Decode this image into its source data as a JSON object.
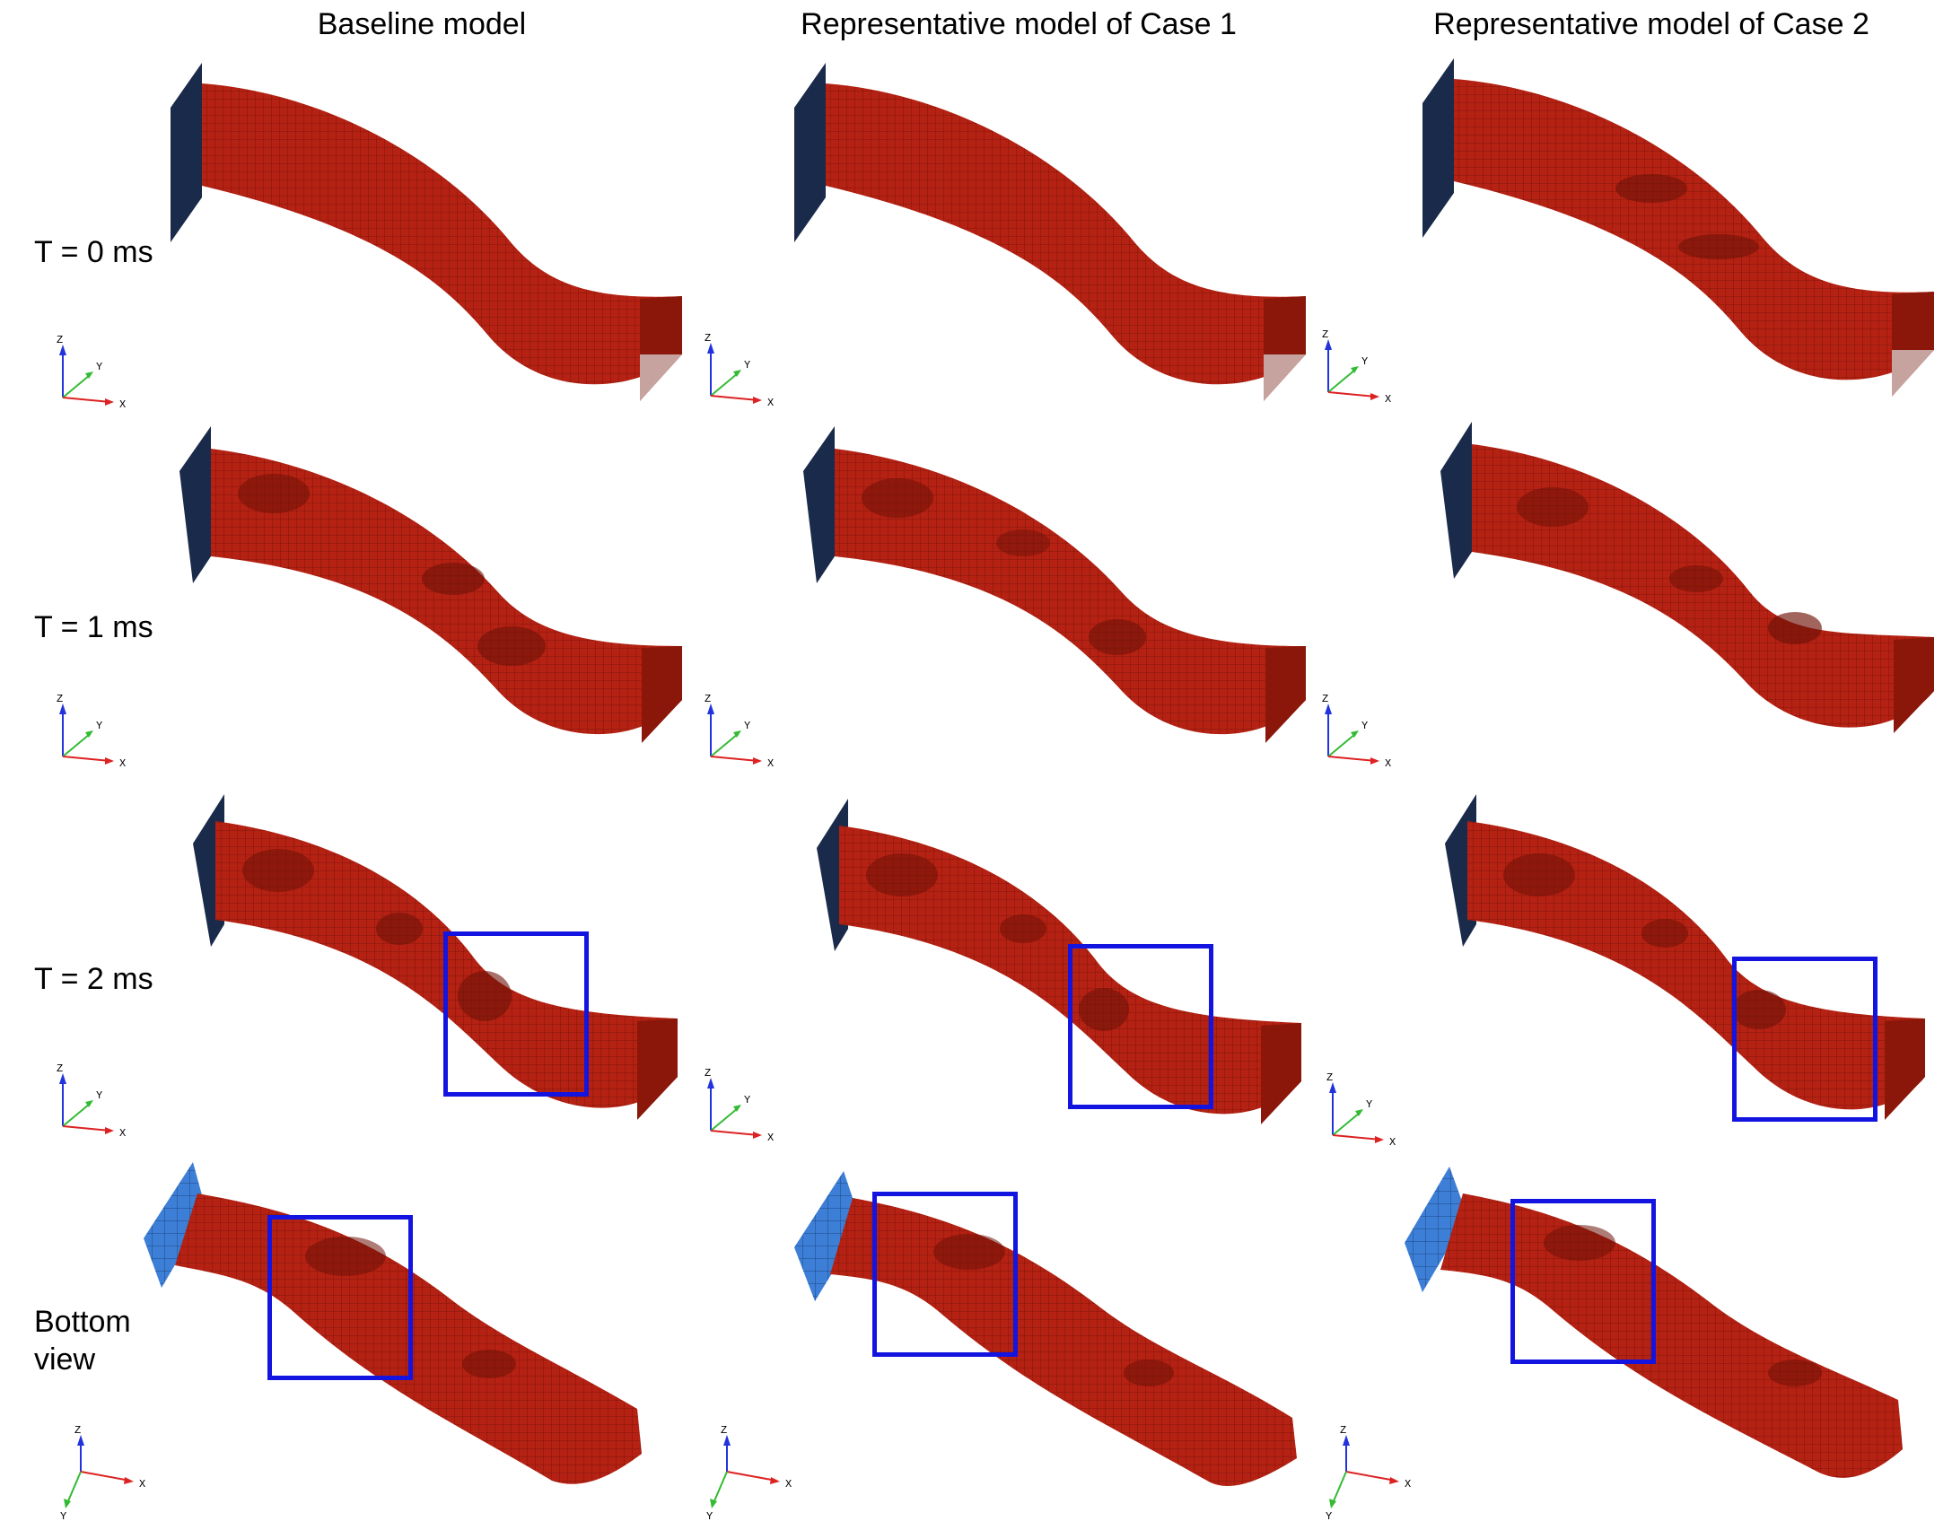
{
  "columns": [
    {
      "title": "Baseline model"
    },
    {
      "title": "Representative model of Case 1"
    },
    {
      "title": "Representative model of Case 2"
    }
  ],
  "rows": [
    {
      "label": "T = 0 ms"
    },
    {
      "label": "T = 1 ms"
    },
    {
      "label": "T = 2 ms"
    },
    {
      "label_line1": "Bottom",
      "label_line2": "view"
    }
  ],
  "axis_labels": {
    "x": "X",
    "y": "Y",
    "z": "Z"
  },
  "colors": {
    "beam": "#b52112",
    "beam_dark": "#6e1208",
    "plate": "#1a2a4a",
    "plate_bottom": "#3d7fd6",
    "highlight_box": "#1414e0"
  }
}
